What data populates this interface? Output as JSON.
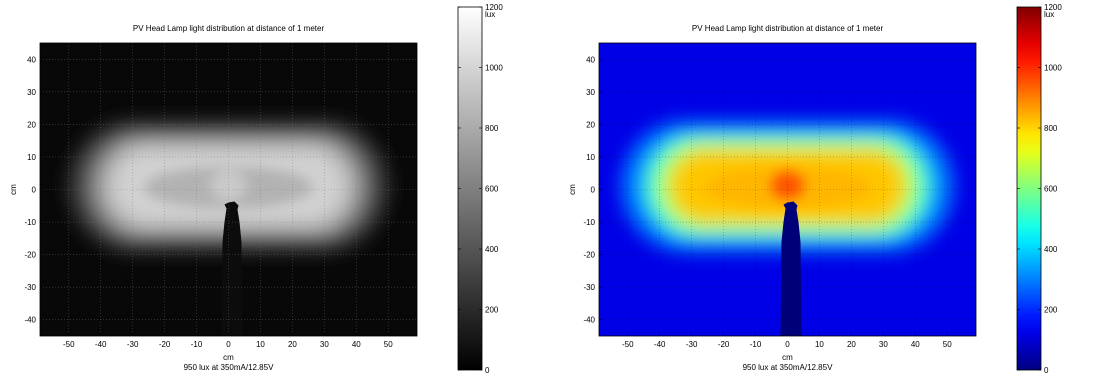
{
  "chart_data": [
    {
      "type": "heatmap",
      "colormap": "gray",
      "title": "PV Head Lamp light distribution at distance of 1 meter",
      "xlabel": "cm",
      "ylabel": "cm",
      "caption": "950 lux at 350mA/12.85V",
      "xlim": [
        -59,
        59
      ],
      "ylim": [
        -45,
        45
      ],
      "xticks": [
        -50,
        -40,
        -30,
        -20,
        -10,
        0,
        10,
        20,
        30,
        40,
        50
      ],
      "yticks": [
        -40,
        -30,
        -20,
        -10,
        0,
        10,
        20,
        30,
        40
      ],
      "grid": true,
      "colorbar": {
        "min": 0,
        "max": 1200,
        "unit": "lux",
        "ticks": [
          0,
          200,
          400,
          600,
          800,
          1000,
          1200
        ]
      },
      "beam": {
        "x_extent": [
          -40,
          40
        ],
        "y_extent": [
          -12,
          14
        ],
        "center": [
          0,
          0
        ],
        "peak_lux": 950
      }
    },
    {
      "type": "heatmap",
      "colormap": "jet",
      "title": "PV Head Lamp light distribution at distance of 1 meter",
      "xlabel": "cm",
      "ylabel": "cm",
      "caption": "950 lux at 350mA/12.85V",
      "xlim": [
        -59,
        59
      ],
      "ylim": [
        -45,
        45
      ],
      "xticks": [
        -50,
        -40,
        -30,
        -20,
        -10,
        0,
        10,
        20,
        30,
        40,
        50
      ],
      "yticks": [
        -40,
        -30,
        -20,
        -10,
        0,
        10,
        20,
        30,
        40
      ],
      "grid": true,
      "colorbar": {
        "min": 0,
        "max": 1200,
        "unit": "lux",
        "ticks": [
          0,
          200,
          400,
          600,
          800,
          1000,
          1200
        ]
      },
      "beam": {
        "x_extent": [
          -40,
          40
        ],
        "y_extent": [
          -12,
          14
        ],
        "center": [
          0,
          0
        ],
        "peak_lux": 950
      }
    }
  ]
}
